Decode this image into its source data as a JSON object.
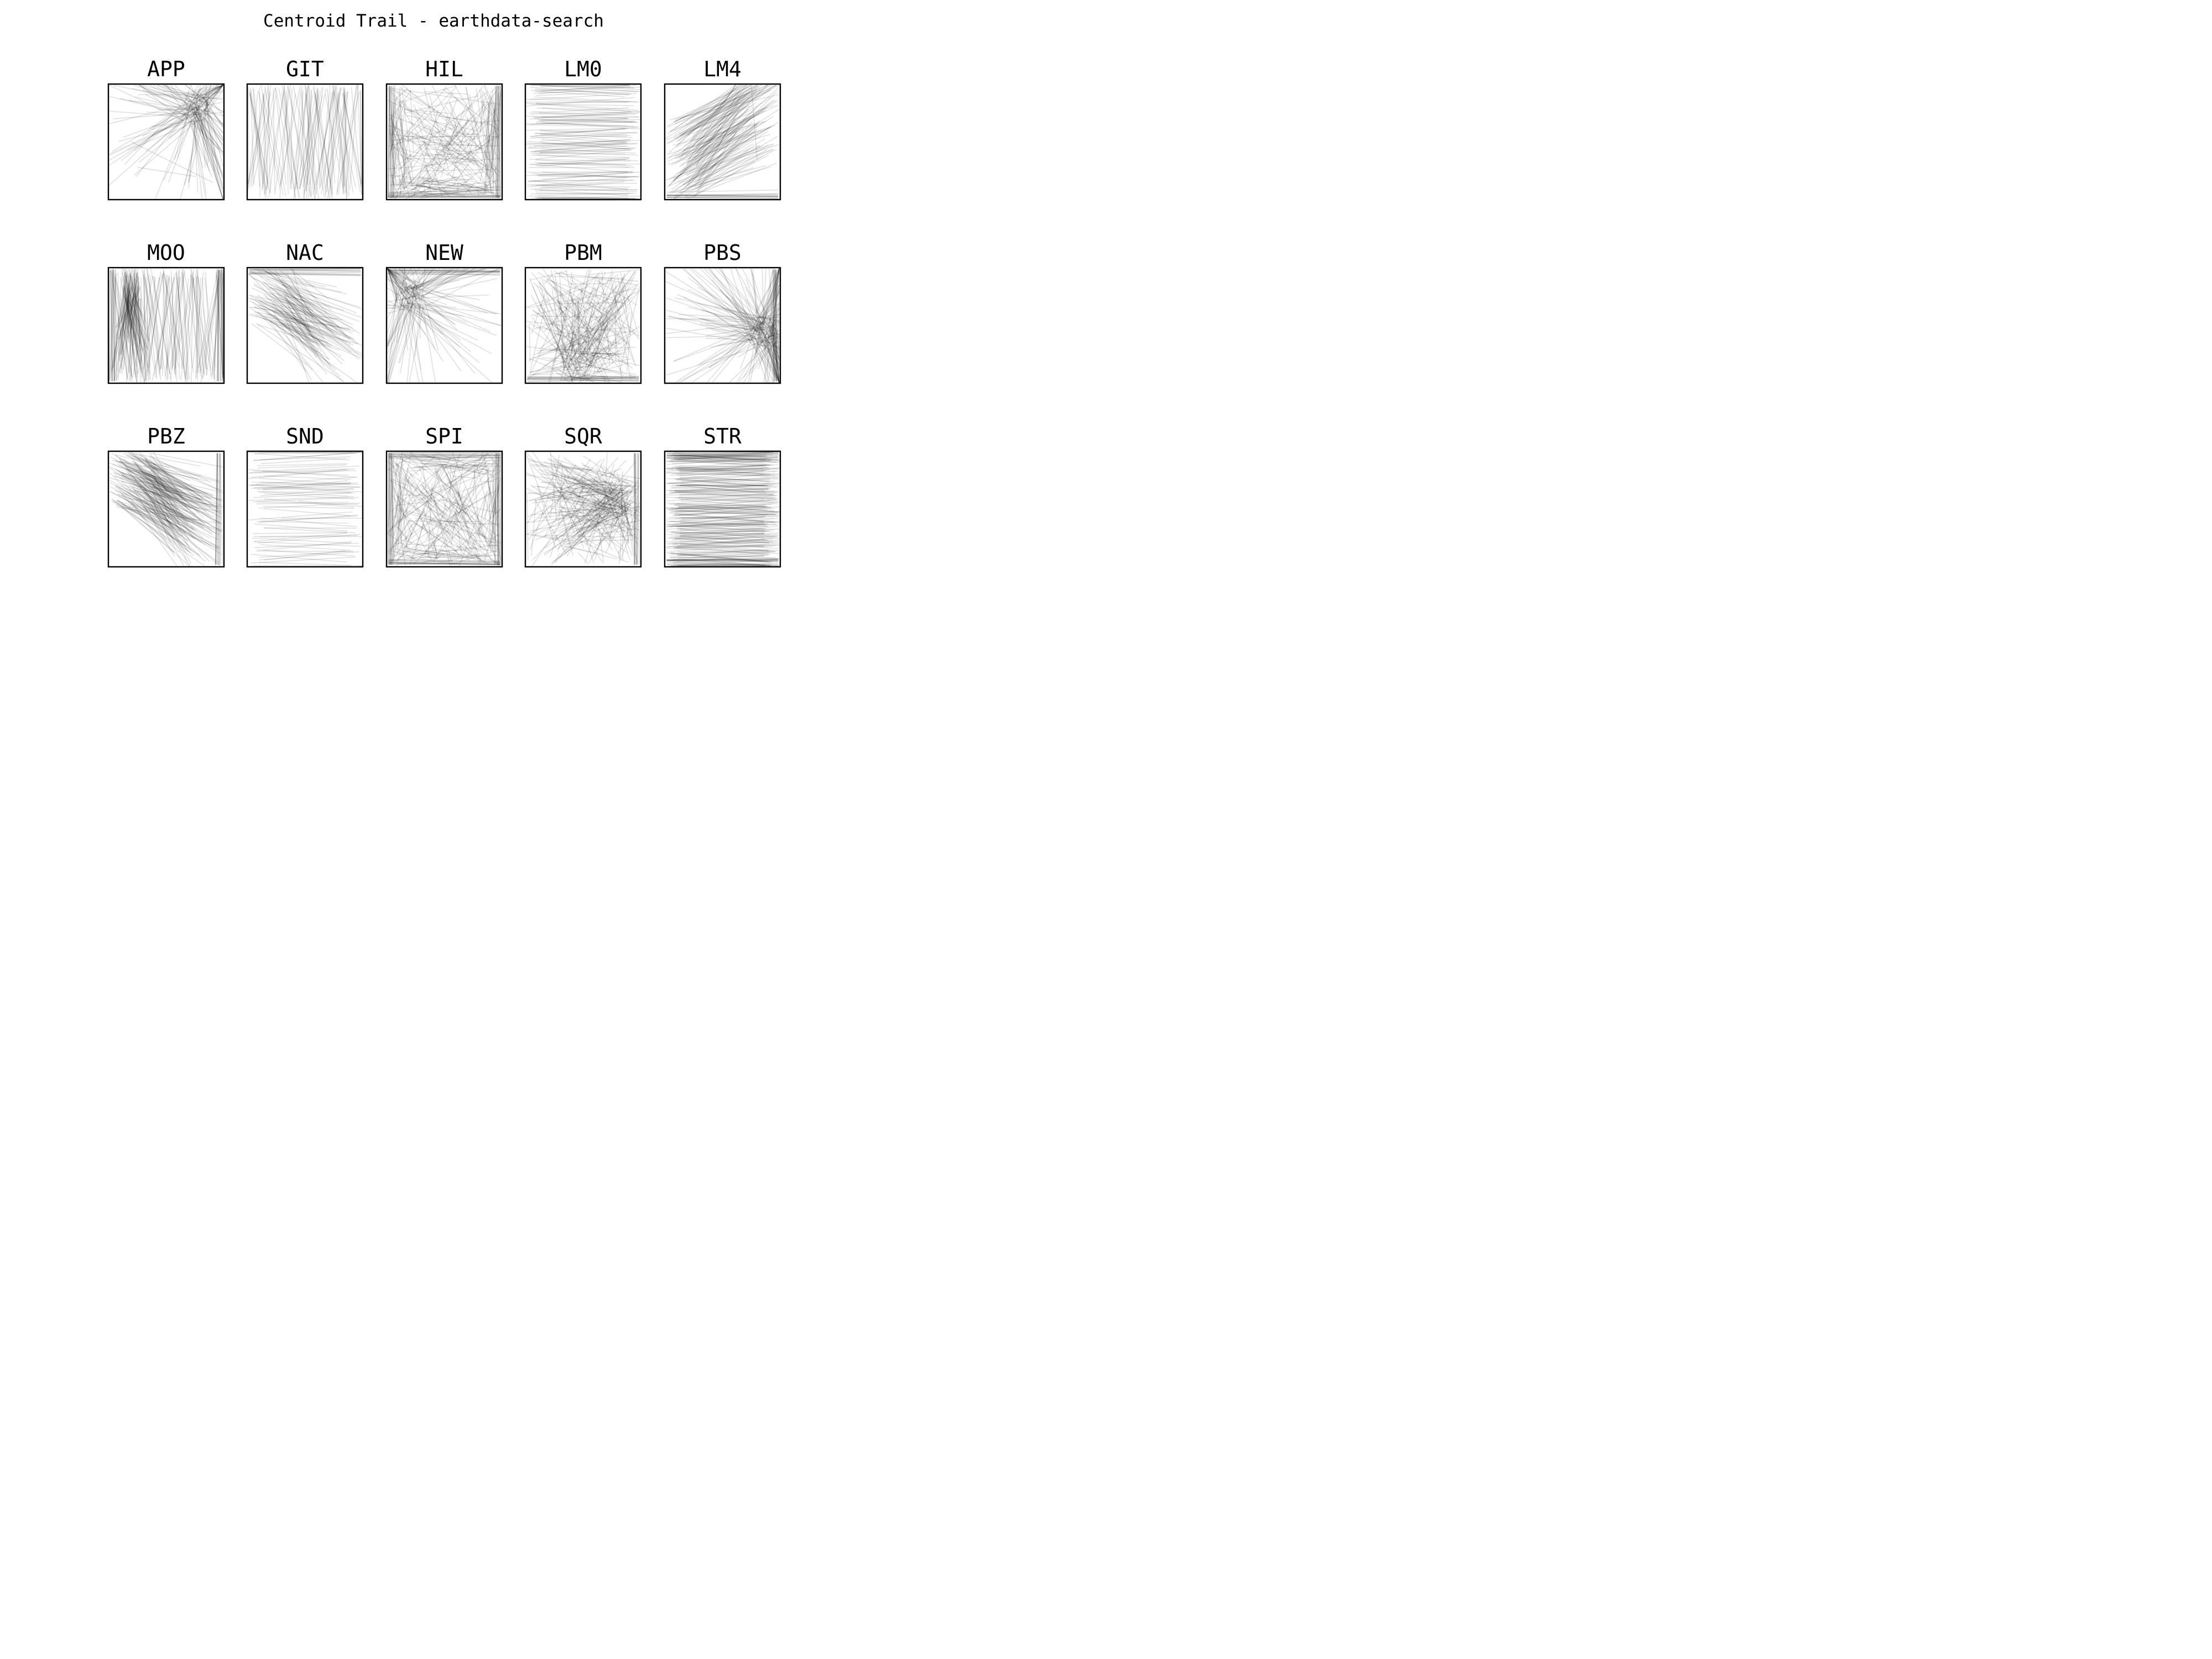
{
  "chart_data": {
    "type": "line",
    "title": "Centroid Trail - earthdata-search",
    "layout": "3 rows x 5 columns of small-multiple panels, no axes or ticks",
    "style": {
      "line_color": "#000000",
      "line_alpha": 0.12,
      "background": "#ffffff",
      "frame_color": "#000000"
    },
    "panels": [
      {
        "label": "APP",
        "pattern": "fan",
        "focus": [
          0.75,
          0.2
        ],
        "density": 170,
        "extra": [
          [
            0.2,
            0.5,
            0.9,
            0.85
          ],
          [
            0.25,
            0.72,
            0.75,
            0.8
          ]
        ]
      },
      {
        "label": "GIT",
        "pattern": "vertical",
        "density": 110,
        "extra": [
          [
            0.35,
            0.02,
            0.55,
            0.98
          ],
          [
            0.4,
            0.02,
            0.6,
            0.95
          ]
        ]
      },
      {
        "label": "HIL",
        "pattern": "frame",
        "edges": [
          "right",
          "bottom",
          "left"
        ],
        "focus": [
          0.35,
          0.8
        ],
        "density": 260
      },
      {
        "label": "LM0",
        "pattern": "horizontal",
        "density": 120
      },
      {
        "label": "LM4",
        "pattern": "diagonal-up",
        "edges": [
          "bottom"
        ],
        "density": 140,
        "extra": [
          [
            0.75,
            0.02,
            0.8,
            0.65
          ]
        ]
      },
      {
        "label": "MOO",
        "pattern": "vertical-dense",
        "focus": [
          0.2,
          0.3
        ],
        "edges": [
          "left",
          "right"
        ],
        "density": 220
      },
      {
        "label": "NAC",
        "pattern": "diagonal-down",
        "edges": [
          "top"
        ],
        "density": 120
      },
      {
        "label": "NEW",
        "pattern": "fan",
        "focus": [
          0.2,
          0.25
        ],
        "edges": [
          "top"
        ],
        "density": 150
      },
      {
        "label": "PBM",
        "pattern": "crosshatch",
        "focus": [
          0.45,
          0.85
        ],
        "edges": [
          "bottom"
        ],
        "density": 230
      },
      {
        "label": "PBS",
        "pattern": "fan",
        "focus": [
          0.85,
          0.55
        ],
        "edges": [
          "right"
        ],
        "density": 210
      },
      {
        "label": "PBZ",
        "pattern": "diagonal-down",
        "focus": [
          0.75,
          0.6
        ],
        "edges": [
          "right"
        ],
        "density": 200
      },
      {
        "label": "SND",
        "pattern": "horizontal",
        "density": 70,
        "extra": [
          [
            0.3,
            0.58,
            1.0,
            0.58
          ],
          [
            0.45,
            0.43,
            1.0,
            0.48
          ]
        ]
      },
      {
        "label": "SPI",
        "pattern": "frame",
        "edges": [
          "left",
          "bottom",
          "right",
          "top"
        ],
        "density": 260
      },
      {
        "label": "SQR",
        "pattern": "crosshatch",
        "focus": [
          0.85,
          0.4
        ],
        "edges": [
          "right"
        ],
        "density": 240
      },
      {
        "label": "STR",
        "pattern": "horizontal-dense",
        "edges": [
          "top",
          "bottom"
        ],
        "density": 230
      }
    ]
  }
}
